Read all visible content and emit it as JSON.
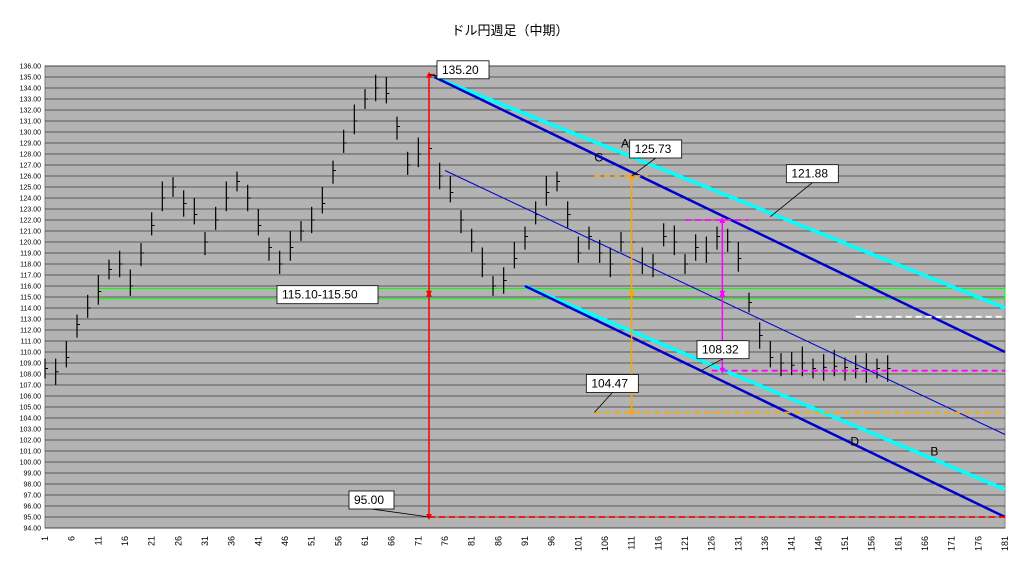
{
  "chart_data": {
    "type": "line",
    "title": "ドル円週足（中期）",
    "xlabel": "",
    "ylabel": "",
    "xlim": [
      1,
      181
    ],
    "ylim": [
      94,
      136
    ],
    "x_ticks": [
      1,
      6,
      11,
      16,
      21,
      26,
      31,
      36,
      41,
      46,
      51,
      56,
      61,
      66,
      71,
      76,
      81,
      86,
      91,
      96,
      101,
      106,
      111,
      116,
      121,
      126,
      131,
      136,
      141,
      146,
      151,
      156,
      161,
      166,
      171,
      176,
      181
    ],
    "y_tick_step": 1,
    "grid": true,
    "plot_background": "#b3b3b3",
    "series": [
      {
        "style": "weekly-bars",
        "color": "#000000",
        "x": [
          1,
          3,
          5,
          7,
          9,
          11,
          13,
          15,
          17,
          19,
          21,
          23,
          25,
          27,
          29,
          31,
          33,
          35,
          37,
          39,
          41,
          43,
          45,
          47,
          49,
          51,
          53,
          55,
          57,
          59,
          61,
          63,
          65,
          67,
          69,
          71,
          73,
          75,
          77,
          79,
          81,
          83,
          85,
          87,
          89,
          91,
          93,
          95,
          97,
          99,
          101,
          103,
          105,
          107,
          109,
          111,
          113,
          115,
          117,
          119,
          121,
          123,
          125,
          127,
          129,
          131,
          133,
          135,
          137,
          139,
          141,
          143,
          145,
          147,
          149,
          151,
          153,
          155,
          157,
          159
        ],
        "y": [
          108.5,
          108.2,
          109.5,
          112.5,
          114.0,
          115.5,
          117.5,
          118.0,
          116.0,
          119.0,
          121.5,
          124.0,
          125.0,
          123.5,
          122.5,
          120.0,
          122.0,
          124.0,
          125.5,
          124.0,
          121.5,
          119.5,
          118.0,
          119.5,
          121.0,
          122.0,
          123.5,
          126.5,
          129.0,
          131.0,
          133.0,
          134.0,
          133.5,
          130.5,
          127.0,
          128.0,
          128.5,
          126.0,
          124.5,
          122.0,
          120.0,
          118.0,
          116.0,
          116.5,
          118.5,
          120.5,
          122.5,
          124.5,
          125.5,
          122.5,
          119.0,
          120.5,
          119.0,
          118.0,
          120.0,
          120.0,
          118.0,
          118.0,
          120.5,
          120.0,
          118.0,
          119.5,
          119.0,
          120.5,
          120.0,
          118.5,
          114.5,
          111.5,
          109.5,
          109.0,
          108.8,
          109.0,
          108.5,
          108.6,
          108.7,
          108.6,
          108.5,
          108.4,
          108.5,
          108.5
        ]
      },
      {
        "name": "A",
        "color": "#00ffff",
        "style": "trendline",
        "x": [
          74,
          181
        ],
        "y": [
          135.0,
          114.0
        ]
      },
      {
        "name": "B",
        "color": "#00ffff",
        "style": "trendline",
        "x": [
          91,
          181
        ],
        "y": [
          116.0,
          97.5
        ]
      },
      {
        "name": "C",
        "color": "#0000cc",
        "style": "trendline",
        "x": [
          74,
          181
        ],
        "y": [
          135.0,
          110.0
        ]
      },
      {
        "name": "D",
        "color": "#0000cc",
        "style": "trendline",
        "x": [
          91,
          181
        ],
        "y": [
          116.0,
          95.0
        ]
      },
      {
        "color": "#0000cc",
        "style": "thin-trendline",
        "x": [
          76,
          181
        ],
        "y": [
          126.5,
          102.5
        ]
      }
    ],
    "horizontal_lines": [
      {
        "y": 135.2,
        "x": [
          73,
          80
        ],
        "color": "#ff0000"
      },
      {
        "y": 95.0,
        "x": [
          73,
          181
        ],
        "color": "#ff0000"
      },
      {
        "y": 126.0,
        "x": [
          104,
          114
        ],
        "color": "#ffa500"
      },
      {
        "y": 104.5,
        "x": [
          104,
          181
        ],
        "color": "#ffa500"
      },
      {
        "y": 122.0,
        "x": [
          121,
          133
        ],
        "color": "#ff00ff"
      },
      {
        "y": 108.3,
        "x": [
          126,
          181
        ],
        "color": "#ff00ff"
      },
      {
        "y": 113.2,
        "x": [
          153,
          181
        ],
        "color": "#ffffff"
      }
    ],
    "zone": {
      "y": [
        115.1,
        115.5
      ],
      "x": [
        11,
        181
      ],
      "color": "#00ff00"
    },
    "vertical_arrows": [
      {
        "x": 73,
        "y": [
          135.2,
          115.3
        ],
        "color": "#ff0000"
      },
      {
        "x": 73,
        "y": [
          115.3,
          95.0
        ],
        "color": "#ff0000"
      },
      {
        "x": 111,
        "y": [
          126.0,
          115.3
        ],
        "color": "#ffa500"
      },
      {
        "x": 111,
        "y": [
          115.3,
          104.5
        ],
        "color": "#ffa500"
      },
      {
        "x": 128,
        "y": [
          122.0,
          115.3
        ],
        "color": "#ff00ff"
      },
      {
        "x": 128,
        "y": [
          115.3,
          108.3
        ],
        "color": "#ff00ff"
      }
    ],
    "annotations": [
      "135.20",
      "125.73",
      "121.88",
      "115.10-115.50",
      "108.32",
      "104.47",
      "95.00"
    ],
    "annotation_points": [
      {
        "x": 73,
        "y": 135.2,
        "text": "135.20"
      },
      {
        "x": 111,
        "y": 126.0,
        "text": "125.73"
      },
      {
        "x": 137,
        "y": 122.3,
        "text": "121.88"
      },
      {
        "x": 55,
        "y": 115.3,
        "text": "115.10-115.50"
      },
      {
        "x": 124,
        "y": 108.3,
        "text": "108.32"
      },
      {
        "x": 104,
        "y": 104.5,
        "text": "104.47"
      },
      {
        "x": 73,
        "y": 95.0,
        "text": "95.00"
      }
    ],
    "line_labels": [
      {
        "text": "A",
        "x": 109,
        "y": 128.6
      },
      {
        "text": "C",
        "x": 104,
        "y": 127.3
      },
      {
        "text": "D",
        "x": 152,
        "y": 101.5
      },
      {
        "text": "B",
        "x": 167,
        "y": 100.6
      }
    ]
  }
}
